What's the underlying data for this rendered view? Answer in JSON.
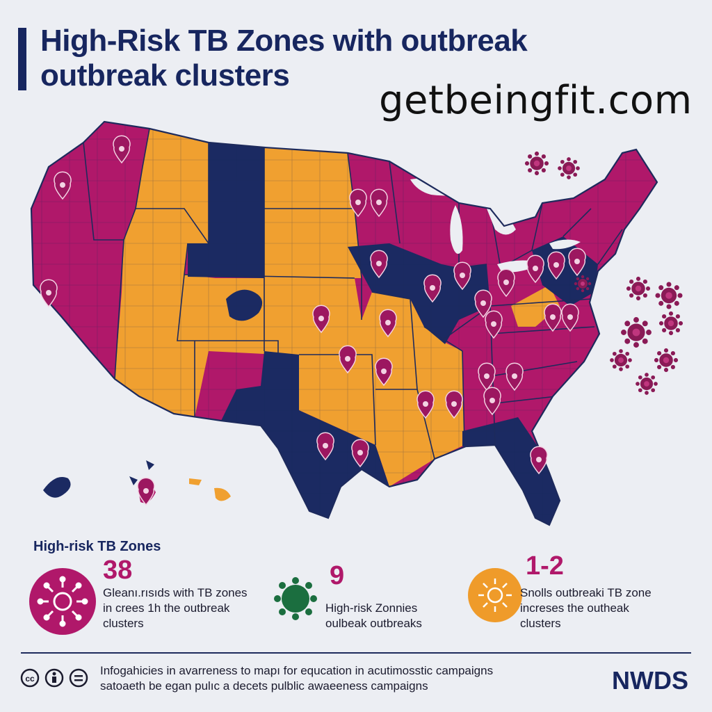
{
  "title_line1": "High-Risk TB Zones with outbreak",
  "title_line2": "outbreak clusters",
  "watermark": "getbeingfit.com",
  "legend": {
    "heading": "High-risk TB Zones",
    "stats": [
      {
        "value": "38",
        "text1": "Gleanı.rısıds with TB zones",
        "text2": "in crees 1h the outbreak",
        "text3": "clusters",
        "color": "#b0186a"
      },
      {
        "value": "9",
        "text1": "",
        "text2": "High-risk Zonnies",
        "text3": "oulbeak outbreaks",
        "color": "#1b6e3f"
      },
      {
        "value": "1-2",
        "text1": "Snolls outbreaki TB zone",
        "text2": "increses the outheak",
        "text3": "clusters",
        "color": "#ef9b2a"
      }
    ]
  },
  "footer": {
    "line1": "Infogahicies in avarreness to mapı for equcation in acutimosstic campaigns",
    "line2": "satoaeth be egan pulıc a decets pulblic awaeeness campaigns",
    "brand": "NWDS",
    "icons": [
      "creative-commons-icon",
      "attribution-icon",
      "no-derivatives-icon"
    ]
  },
  "colors": {
    "high": "#b0186a",
    "medium": "#f0a030",
    "low": "#1b2a62",
    "virus": "#8a1a56",
    "outline": "#1d2a5c"
  }
}
